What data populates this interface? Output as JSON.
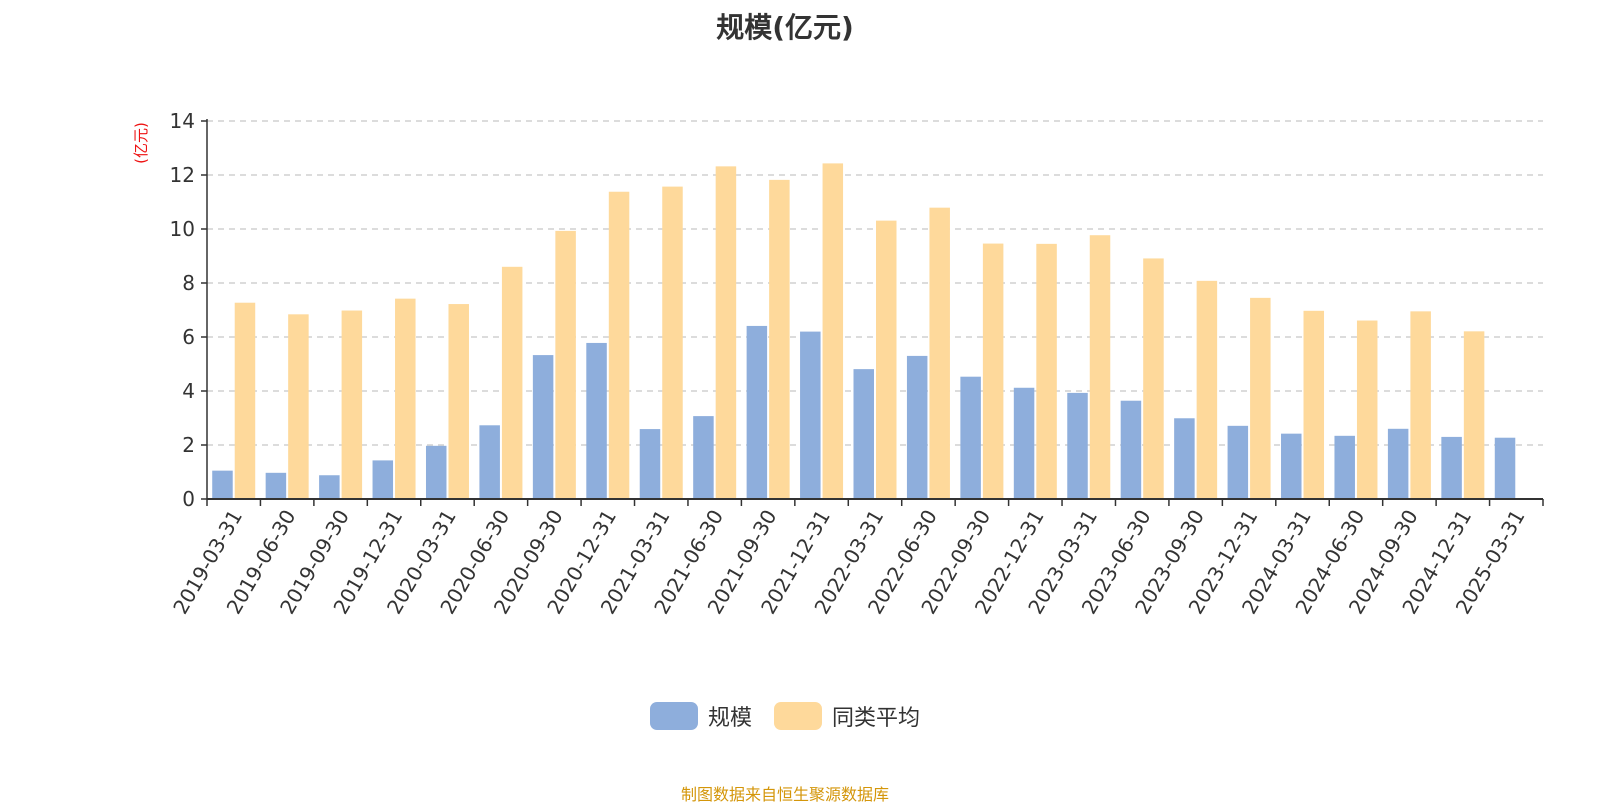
{
  "chart_data": {
    "type": "bar",
    "title": "规模(亿元)",
    "ylabel": "(亿元)",
    "xlabel": "",
    "ylim": [
      0,
      14
    ],
    "yticks": [
      0,
      2,
      4,
      6,
      8,
      10,
      12,
      14
    ],
    "grid": true,
    "legend_position": "bottom",
    "categories": [
      "2019-03-31",
      "2019-06-30",
      "2019-09-30",
      "2019-12-31",
      "2020-03-31",
      "2020-06-30",
      "2020-09-30",
      "2020-12-31",
      "2021-03-31",
      "2021-06-30",
      "2021-09-30",
      "2021-12-31",
      "2022-03-31",
      "2022-06-30",
      "2022-09-30",
      "2022-12-31",
      "2023-03-31",
      "2023-06-30",
      "2023-09-30",
      "2023-12-31",
      "2024-03-31",
      "2024-06-30",
      "2024-09-30",
      "2024-12-31",
      "2025-03-31"
    ],
    "series": [
      {
        "name": "规模",
        "color": "#8eaedc",
        "values": [
          1.05,
          0.97,
          0.88,
          1.43,
          1.97,
          2.73,
          5.33,
          5.78,
          2.59,
          3.07,
          6.41,
          6.2,
          4.81,
          5.3,
          4.53,
          4.12,
          3.93,
          3.64,
          2.99,
          2.71,
          2.42,
          2.34,
          2.6,
          2.3,
          2.27
        ]
      },
      {
        "name": "同类平均",
        "color": "#fed99b",
        "values": [
          7.27,
          6.84,
          6.98,
          7.42,
          7.22,
          8.6,
          9.93,
          11.38,
          11.57,
          12.32,
          11.82,
          12.43,
          10.31,
          10.79,
          9.46,
          9.45,
          9.77,
          8.91,
          8.08,
          7.45,
          6.97,
          6.61,
          6.95,
          6.21,
          null
        ]
      }
    ]
  },
  "legend": {
    "items": [
      {
        "label": "规模",
        "color": "#8eaedc"
      },
      {
        "label": "同类平均",
        "color": "#fed99b"
      }
    ]
  },
  "source_note": "制图数据来自恒生聚源数据库"
}
